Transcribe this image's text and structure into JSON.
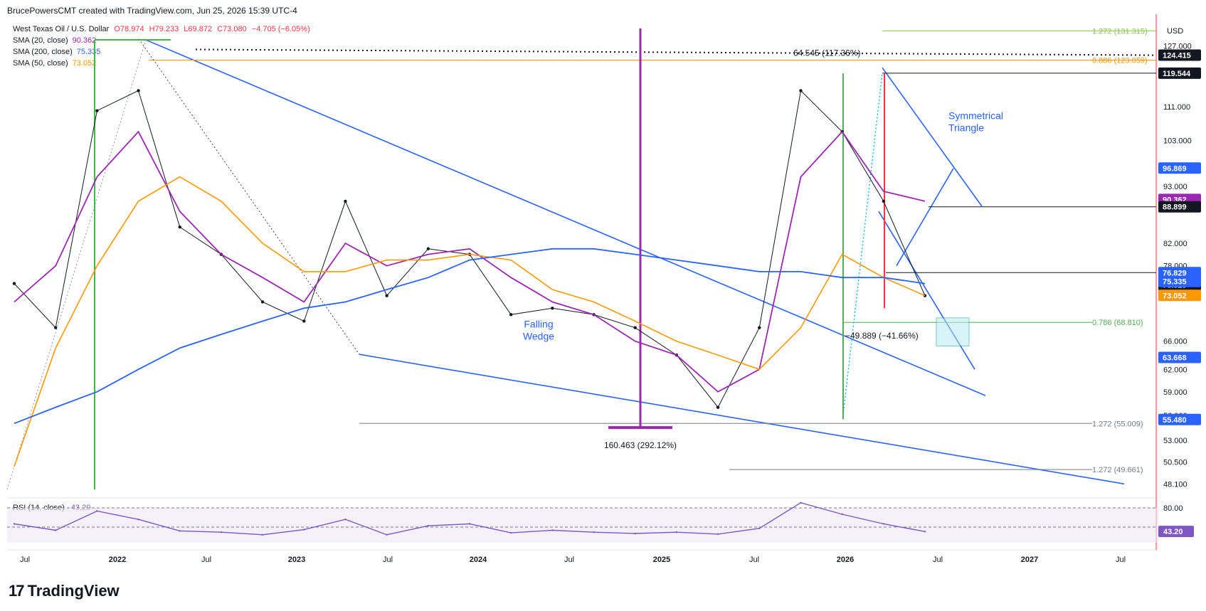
{
  "header": {
    "credit": "BrucePowersCMT created with TradingView.com, Jun 25, 2026 15:39 UTC-4",
    "symbol": "West Texas Oil / U.S. Dollar",
    "ohlc": {
      "o": "O78.974",
      "h": "H79.233",
      "l": "L69.872",
      "c": "C73.080",
      "chg": "−4.705 (−6.05%)"
    },
    "currency": "USD"
  },
  "indicators": [
    {
      "label": "SMA (20, close)",
      "value": "90.362",
      "color": "#9c27b0"
    },
    {
      "label": "SMA (200, close)",
      "value": "75.335",
      "color": "#2962ff"
    },
    {
      "label": "SMA (50, close)",
      "value": "73.052",
      "color": "#ff9800"
    }
  ],
  "rsi": {
    "label": "RSI (14, close)",
    "value": "43.20",
    "levels": [
      "80.00",
      "43.20"
    ]
  },
  "price_axis": {
    "ticks": [
      "127.000",
      "111.000",
      "103.000",
      "93.000",
      "82.000",
      "78.000",
      "66.000",
      "62.000",
      "59.000",
      "56.000",
      "53.000",
      "50.500",
      "48.100"
    ],
    "badges": [
      {
        "text": "124.415",
        "bg": "#131722",
        "fg": "#ffffff",
        "price": 124.415
      },
      {
        "text": "119.544",
        "bg": "#131722",
        "fg": "#ffffff",
        "price": 119.544
      },
      {
        "text": "96.869",
        "bg": "#2962ff",
        "fg": "#ffffff",
        "price": 96.869
      },
      {
        "text": "90.362",
        "bg": "#9c27b0",
        "fg": "#ffffff",
        "price": 90.362
      },
      {
        "text": "88.899",
        "bg": "#131722",
        "fg": "#ffffff",
        "price": 88.899
      },
      {
        "text": "76.829",
        "bg": "#2962ff",
        "fg": "#ffffff",
        "price": 76.829
      },
      {
        "text": "76.829",
        "bg": "#131722",
        "fg": "#ffffff",
        "price": 76.829
      },
      {
        "text": "75.335",
        "bg": "#2962ff",
        "fg": "#ffffff",
        "price": 75.335
      },
      {
        "text": "73.052",
        "bg": "#ff9800",
        "fg": "#ffffff",
        "price": 73.052
      },
      {
        "text": "63.668",
        "bg": "#2962ff",
        "fg": "#ffffff",
        "price": 63.668
      },
      {
        "text": "55.480",
        "bg": "#2962ff",
        "fg": "#ffffff",
        "price": 55.48
      }
    ]
  },
  "time_axis": [
    "Jul",
    "2022",
    "Jul",
    "2023",
    "Jul",
    "2024",
    "Jul",
    "2025",
    "Jul",
    "2026",
    "Jul",
    "2027",
    "Jul"
  ],
  "annotations": {
    "fib_top": "1.272 (131.315)",
    "fib_886": "0.886 (123.059)",
    "measure_top": "64.545 (117.36%)",
    "fib_786": "0.786 (68.810)",
    "measure_drop": "−49.889 (−41.66%)",
    "fib_1272_a": "1.272 (55.009)",
    "fib_1272_b": "1.272 (49.661)",
    "measure_big": "160.463 (292.12%)",
    "falling_wedge": [
      "Falling",
      "Wedge"
    ],
    "sym_triangle": [
      "Symmetrical",
      "Triangle"
    ]
  },
  "brand": "TradingView",
  "chart_data": {
    "type": "line",
    "title": "West Texas Oil / U.S. Dollar",
    "xlabel": "",
    "ylabel": "",
    "ylim": [
      47,
      132
    ],
    "log_scale": true,
    "x": [
      "2021-07",
      "2021-12",
      "2022-03",
      "2022-06",
      "2022-09",
      "2022-12",
      "2023-03",
      "2023-06",
      "2023-09",
      "2023-12",
      "2024-03",
      "2024-06",
      "2024-09",
      "2024-12",
      "2025-03",
      "2025-06",
      "2025-09",
      "2025-12",
      "2026-02",
      "2026-03",
      "2026-04",
      "2026-05",
      "2026-06"
    ],
    "series": [
      {
        "name": "West Texas Oil / U.S. Dollar",
        "values": [
          75,
          68,
          110,
          115,
          85,
          80,
          72,
          69,
          90,
          73,
          81,
          80,
          70,
          71,
          70,
          68,
          64,
          57,
          68,
          115,
          105,
          90,
          73
        ]
      },
      {
        "name": "SMA (20, close)",
        "values": [
          72,
          78,
          95,
          105,
          88,
          80,
          76,
          72,
          82,
          78,
          80,
          81,
          76,
          72,
          70,
          66,
          64,
          59,
          62,
          95,
          105,
          92,
          90
        ]
      },
      {
        "name": "SMA (50, close)",
        "values": [
          50,
          65,
          78,
          90,
          95,
          90,
          82,
          77,
          77,
          79,
          79,
          80,
          79,
          74,
          72,
          69,
          66,
          64,
          62,
          68,
          80,
          76,
          73
        ]
      },
      {
        "name": "SMA (200, close)",
        "values": [
          55,
          57,
          59,
          62,
          65,
          67,
          69,
          71,
          72,
          74,
          76,
          79,
          80,
          81,
          81,
          80,
          79,
          78,
          77,
          77,
          76,
          76,
          75
        ]
      }
    ],
    "rsi_range": [
      20,
      90
    ],
    "rsi_values": [
      55,
      45,
      75,
      62,
      44,
      42,
      38,
      46,
      62,
      38,
      52,
      55,
      41,
      45,
      42,
      40,
      42,
      39,
      48,
      88,
      70,
      55,
      43
    ]
  }
}
